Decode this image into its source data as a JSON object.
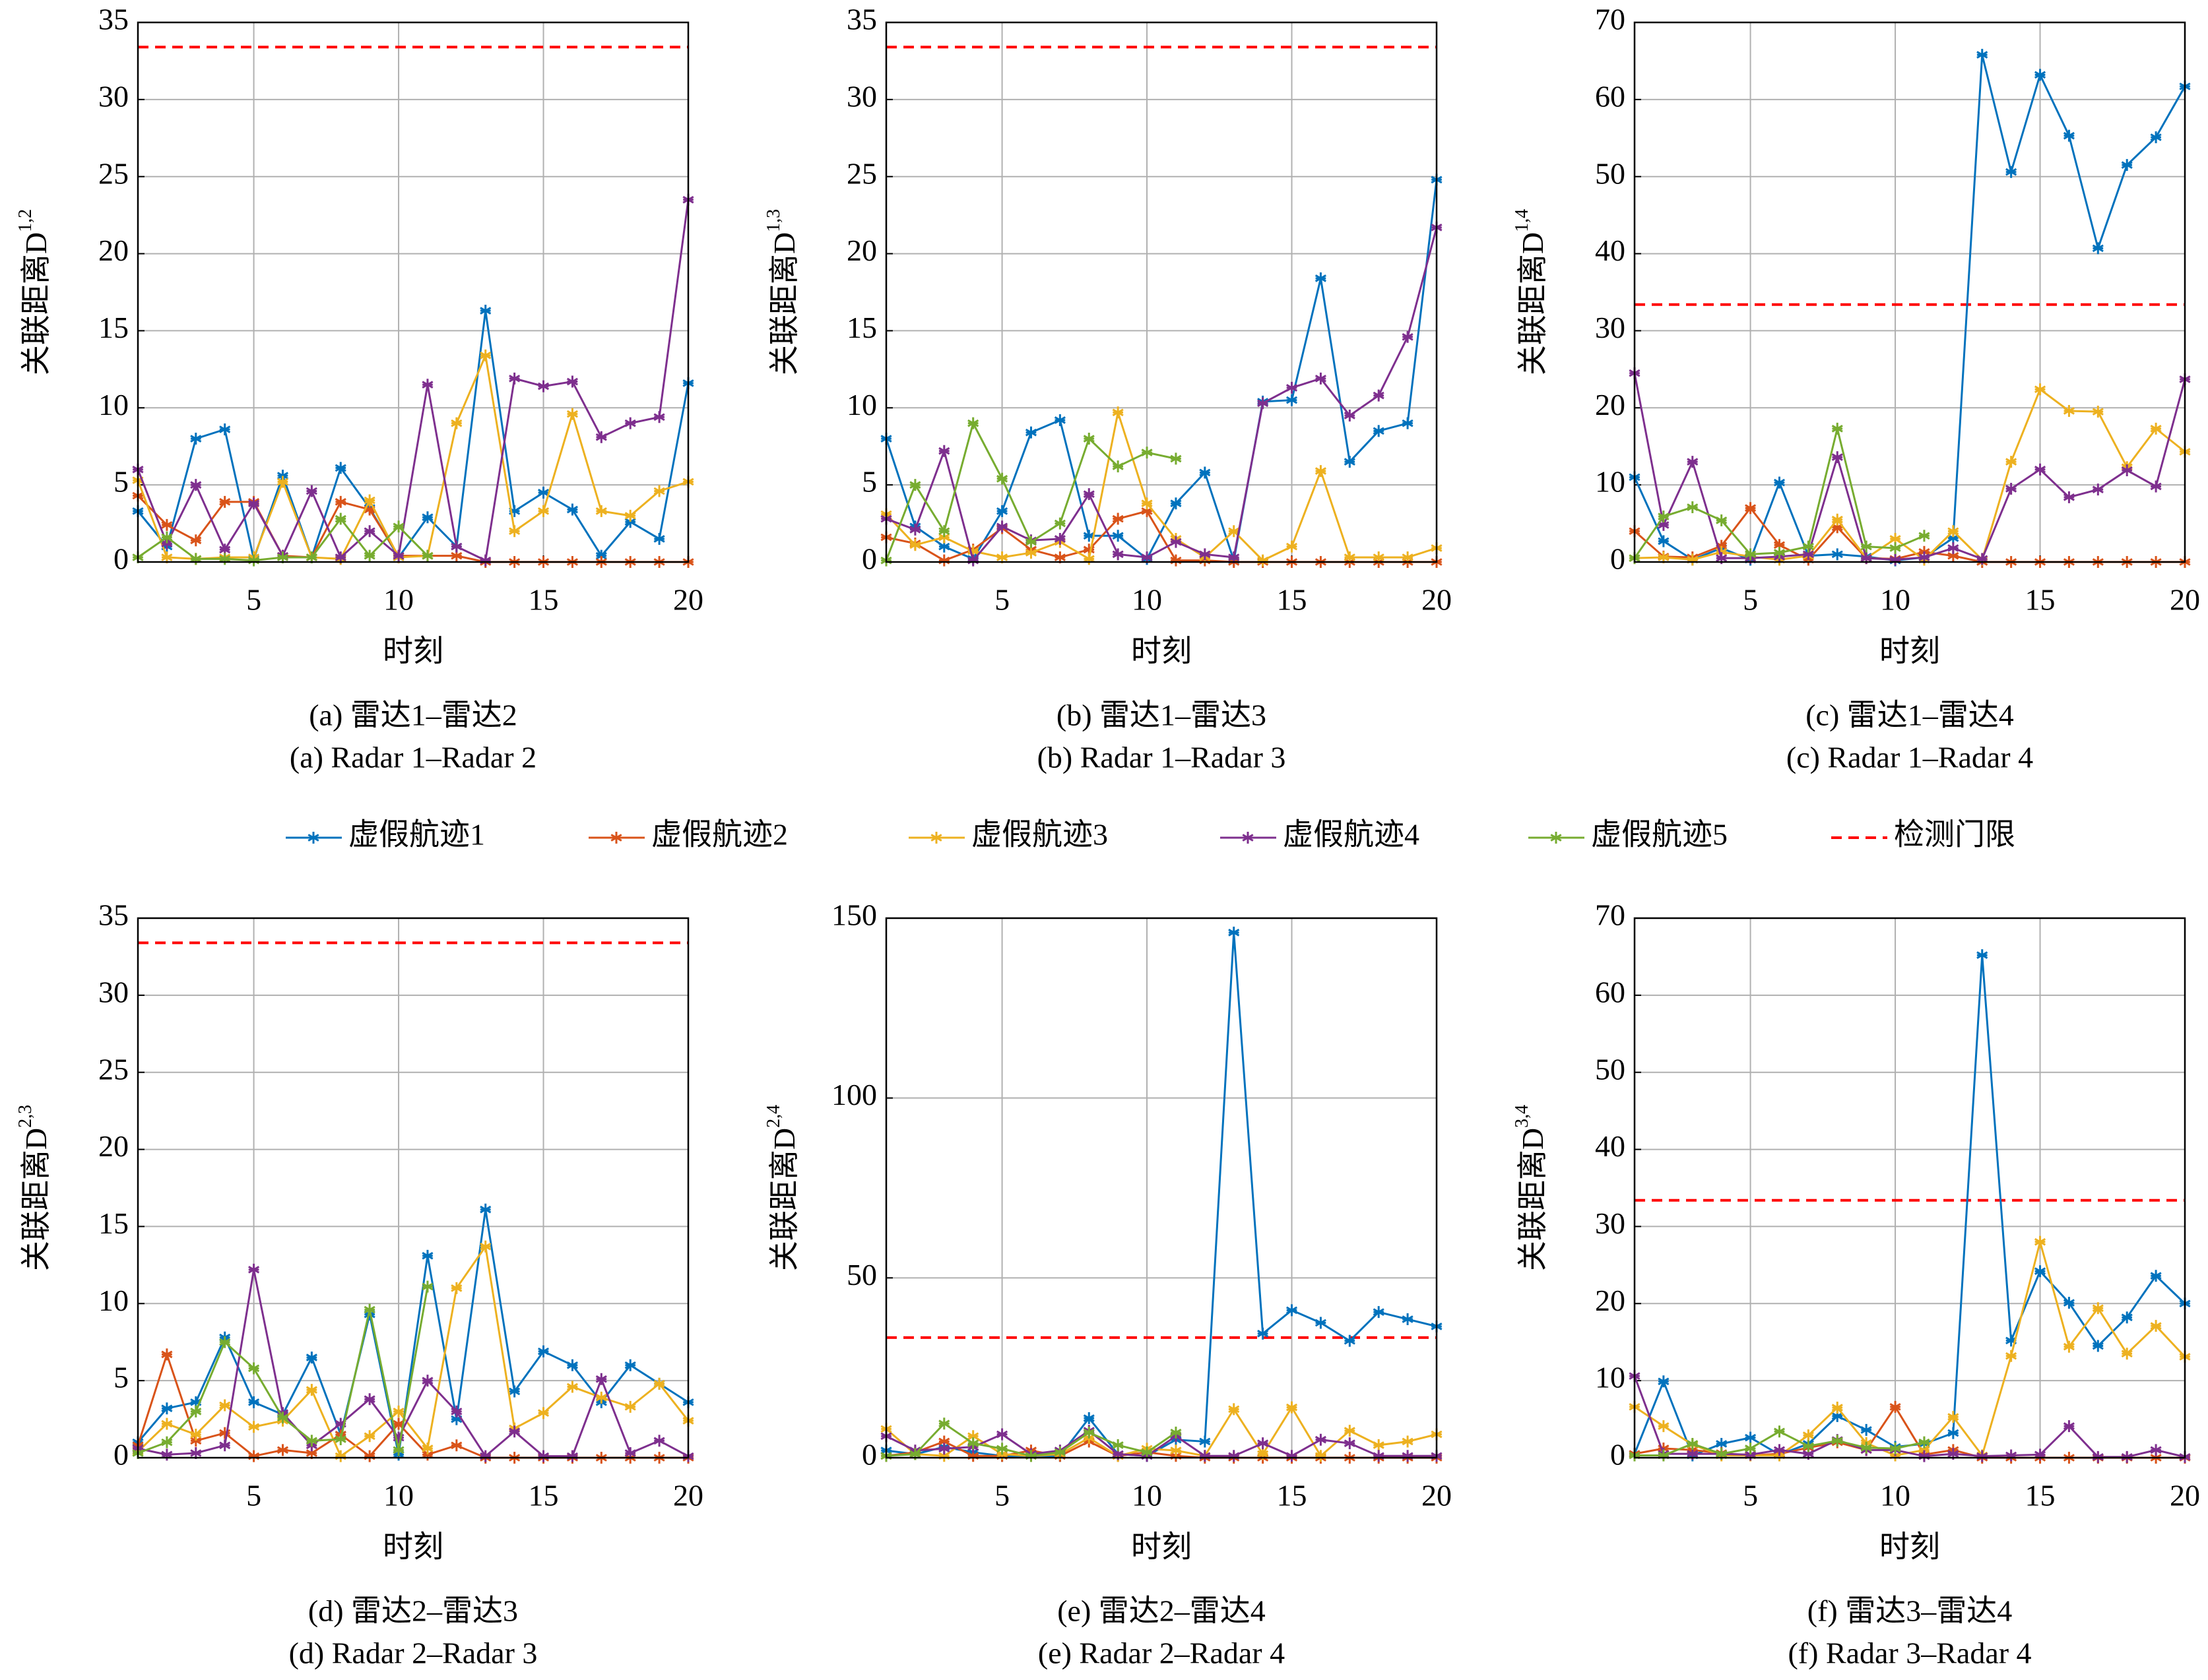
{
  "chart_data": [
    {
      "type": "line",
      "caption_cn": "(a) 雷达1–雷达2",
      "caption_en": "(a) Radar 1–Radar 2",
      "xlabel": "时刻",
      "ylabel": "关联距离D",
      "ylabel_sup": "1,2",
      "x": [
        1,
        2,
        3,
        4,
        5,
        6,
        7,
        8,
        9,
        10,
        11,
        12,
        13,
        14,
        15,
        16,
        17,
        18,
        19,
        20
      ],
      "xlim": [
        1,
        20
      ],
      "xticks": [
        5,
        10,
        15,
        20
      ],
      "ylim": [
        0,
        35
      ],
      "yticks": [
        0,
        5,
        10,
        15,
        20,
        25,
        30,
        35
      ],
      "grid": true,
      "threshold": {
        "name": "检测门限",
        "value": 33.4,
        "color": "#ff0000"
      },
      "series": [
        {
          "name": "虚假航迹1",
          "color": "#0072bd",
          "values": [
            3.3,
            1.0,
            8.0,
            8.6,
            0.2,
            5.6,
            0.3,
            6.1,
            3.5,
            0.3,
            2.9,
            1.0,
            16.3,
            3.3,
            4.5,
            3.4,
            0.4,
            2.6,
            1.5,
            11.6
          ]
        },
        {
          "name": "虚假航迹2",
          "color": "#d95319",
          "values": [
            4.3,
            2.4,
            1.4,
            3.9,
            3.9,
            0.4,
            0.3,
            3.9,
            3.4,
            0.4,
            0.4,
            0.4,
            0,
            0,
            0,
            0,
            0,
            0,
            0,
            0
          ]
        },
        {
          "name": "虚假航迹3",
          "color": "#edb120",
          "values": [
            5.3,
            0.3,
            0.2,
            0.3,
            0.3,
            5.2,
            0.3,
            0.2,
            4.0,
            0.3,
            0.4,
            9.0,
            13.4,
            2.0,
            3.3,
            9.6,
            3.3,
            3.0,
            4.6,
            5.2
          ]
        },
        {
          "name": "虚假航迹4",
          "color": "#7e2f8e",
          "values": [
            6.0,
            1.2,
            5.0,
            0.8,
            3.8,
            0.4,
            4.6,
            0.3,
            2.0,
            0.4,
            11.5,
            1.0,
            0.1,
            11.9,
            11.4,
            11.7,
            8.1,
            9.0,
            9.4,
            23.5
          ]
        },
        {
          "name": "虚假航迹5",
          "color": "#77ac30",
          "values": [
            0.3,
            1.6,
            0.2,
            0.2,
            0.1,
            0.3,
            0.3,
            2.8,
            0.4,
            2.3,
            0.4,
            null,
            null,
            null,
            null,
            null,
            null,
            null,
            null,
            null
          ]
        }
      ]
    },
    {
      "type": "line",
      "caption_cn": "(b) 雷达1–雷达3",
      "caption_en": "(b) Radar 1–Radar 3",
      "xlabel": "时刻",
      "ylabel": "关联距离D",
      "ylabel_sup": "1,3",
      "x": [
        1,
        2,
        3,
        4,
        5,
        6,
        7,
        8,
        9,
        10,
        11,
        12,
        13,
        14,
        15,
        16,
        17,
        18,
        19,
        20
      ],
      "xlim": [
        1,
        20
      ],
      "xticks": [
        5,
        10,
        15,
        20
      ],
      "ylim": [
        0,
        35
      ],
      "yticks": [
        0,
        5,
        10,
        15,
        20,
        25,
        30,
        35
      ],
      "grid": true,
      "threshold": {
        "name": "检测门限",
        "value": 33.4,
        "color": "#ff0000"
      },
      "series": [
        {
          "name": "虚假航迹1",
          "color": "#0072bd",
          "values": [
            8.0,
            2.3,
            1.0,
            0.2,
            3.3,
            8.4,
            9.2,
            1.7,
            1.7,
            0.2,
            3.8,
            5.8,
            0.1,
            10.4,
            10.5,
            18.4,
            6.5,
            8.5,
            9.0,
            24.8
          ]
        },
        {
          "name": "虚假航迹2",
          "color": "#d95319",
          "values": [
            1.6,
            1.2,
            0.1,
            0.8,
            2.2,
            0.8,
            0.3,
            0.8,
            2.8,
            3.3,
            0.1,
            0.1,
            0,
            0,
            0,
            0,
            0,
            0,
            0,
            0
          ]
        },
        {
          "name": "虚假航迹3",
          "color": "#edb120",
          "values": [
            3.1,
            1.1,
            1.6,
            0.7,
            0.3,
            0.6,
            1.3,
            0.2,
            9.7,
            3.8,
            1.5,
            0.3,
            2.0,
            0.1,
            1.0,
            5.9,
            0.3,
            0.3,
            0.3,
            0.9
          ]
        },
        {
          "name": "虚假航迹4",
          "color": "#7e2f8e",
          "values": [
            2.8,
            2.1,
            7.2,
            0.1,
            2.3,
            1.4,
            1.5,
            4.4,
            0.5,
            0.3,
            1.3,
            0.5,
            0.3,
            10.3,
            11.3,
            11.9,
            9.5,
            10.8,
            14.6,
            21.7
          ]
        },
        {
          "name": "虚假航迹5",
          "color": "#77ac30",
          "values": [
            0.1,
            5.0,
            2.0,
            9.0,
            5.4,
            1.3,
            2.5,
            8.0,
            6.2,
            7.1,
            6.7,
            null,
            null,
            null,
            null,
            null,
            null,
            null,
            null,
            null
          ]
        }
      ]
    },
    {
      "type": "line",
      "caption_cn": "(c) 雷达1–雷达4",
      "caption_en": "(c) Radar 1–Radar 4",
      "xlabel": "时刻",
      "ylabel": "关联距离D",
      "ylabel_sup": "1,4",
      "x": [
        1,
        2,
        3,
        4,
        5,
        6,
        7,
        8,
        9,
        10,
        11,
        12,
        13,
        14,
        15,
        16,
        17,
        18,
        19,
        20
      ],
      "xlim": [
        1,
        20
      ],
      "xticks": [
        5,
        10,
        15,
        20
      ],
      "ylim": [
        0,
        70
      ],
      "yticks": [
        0,
        10,
        20,
        30,
        40,
        50,
        60,
        70
      ],
      "grid": true,
      "threshold": {
        "name": "检测门限",
        "value": 33.4,
        "color": "#ff0000"
      },
      "series": [
        {
          "name": "虚假航迹1",
          "color": "#0072bd",
          "values": [
            11.0,
            2.7,
            0.3,
            1.8,
            0.3,
            10.3,
            0.8,
            1.0,
            0.7,
            0.2,
            0.6,
            3.1,
            65.8,
            50.6,
            63.2,
            55.3,
            40.7,
            51.5,
            55.1,
            61.7
          ]
        },
        {
          "name": "虚假航迹2",
          "color": "#d95319",
          "values": [
            4.0,
            0.7,
            0.6,
            2.1,
            7.0,
            2.2,
            0.3,
            4.5,
            0.5,
            0.4,
            1.3,
            0.8,
            0,
            0,
            0,
            0,
            0,
            0,
            0,
            0
          ]
        },
        {
          "name": "虚假航迹3",
          "color": "#edb120",
          "values": [
            0.5,
            0.6,
            0.3,
            1.3,
            0.7,
            0.3,
            0.8,
            5.5,
            0.5,
            3.0,
            0.3,
            4.0,
            0.3,
            13.0,
            22.4,
            19.6,
            19.5,
            12.3,
            17.3,
            14.3
          ]
        },
        {
          "name": "虚假航迹4",
          "color": "#7e2f8e",
          "values": [
            24.5,
            4.8,
            13.0,
            0.5,
            0.5,
            0.7,
            1.0,
            13.6,
            0.5,
            0.3,
            0.6,
            1.8,
            0.4,
            9.5,
            12.0,
            8.4,
            9.4,
            11.9,
            9.8,
            23.7
          ]
        },
        {
          "name": "虚假航迹5",
          "color": "#77ac30",
          "values": [
            0.5,
            5.9,
            7.1,
            5.4,
            1.0,
            1.2,
            2.0,
            17.3,
            2.0,
            1.8,
            3.4,
            null,
            null,
            null,
            null,
            null,
            null,
            null,
            null,
            null
          ]
        }
      ]
    },
    {
      "type": "line",
      "caption_cn": "(d) 雷达2–雷达3",
      "caption_en": "(d) Radar 2–Radar 3",
      "xlabel": "时刻",
      "ylabel": "关联距离D",
      "ylabel_sup": "2,3",
      "x": [
        1,
        2,
        3,
        4,
        5,
        6,
        7,
        8,
        9,
        10,
        11,
        12,
        13,
        14,
        15,
        16,
        17,
        18,
        19,
        20
      ],
      "xlim": [
        1,
        20
      ],
      "xticks": [
        5,
        10,
        15,
        20
      ],
      "ylim": [
        0,
        35
      ],
      "yticks": [
        0,
        5,
        10,
        15,
        20,
        25,
        30,
        35
      ],
      "grid": true,
      "threshold": {
        "name": "检测门限",
        "value": 33.4,
        "color": "#ff0000"
      },
      "series": [
        {
          "name": "虚假航迹1",
          "color": "#0072bd",
          "values": [
            1.0,
            3.2,
            3.6,
            7.8,
            3.6,
            2.8,
            6.5,
            1.5,
            9.3,
            0.2,
            13.1,
            2.5,
            16.1,
            4.3,
            6.9,
            6.0,
            3.6,
            6.0,
            4.8,
            3.6
          ]
        },
        {
          "name": "虚假航迹2",
          "color": "#d95319",
          "values": [
            0.8,
            6.7,
            1.1,
            1.6,
            0.1,
            0.5,
            0.3,
            1.5,
            0.1,
            2.2,
            0.2,
            0.8,
            0,
            0,
            0,
            0,
            0,
            0,
            0,
            0
          ]
        },
        {
          "name": "虚假航迹3",
          "color": "#edb120",
          "values": [
            0.4,
            2.2,
            1.5,
            3.4,
            2.0,
            2.4,
            4.4,
            0.1,
            1.4,
            3.0,
            0.6,
            11.0,
            13.7,
            1.9,
            2.9,
            4.6,
            3.9,
            3.3,
            4.8,
            2.4
          ]
        },
        {
          "name": "虚假航迹4",
          "color": "#7e2f8e",
          "values": [
            0.6,
            0.2,
            0.3,
            0.8,
            12.2,
            2.9,
            0.8,
            2.2,
            3.8,
            1.3,
            5.0,
            3.0,
            0.1,
            1.7,
            0.1,
            0.1,
            5.1,
            0.3,
            1.1,
            0.1
          ]
        },
        {
          "name": "虚假航迹5",
          "color": "#77ac30",
          "values": [
            0.3,
            1.0,
            3.0,
            7.5,
            5.8,
            2.6,
            1.1,
            1.2,
            9.6,
            0.5,
            11.1,
            null,
            null,
            null,
            null,
            null,
            null,
            null,
            null,
            null
          ]
        }
      ]
    },
    {
      "type": "line",
      "caption_cn": "(e) 雷达2–雷达4",
      "caption_en": "(e) Radar 2–Radar 4",
      "xlabel": "时刻",
      "ylabel": "关联距离D",
      "ylabel_sup": "2,4",
      "x": [
        1,
        2,
        3,
        4,
        5,
        6,
        7,
        8,
        9,
        10,
        11,
        12,
        13,
        14,
        15,
        16,
        17,
        18,
        19,
        20
      ],
      "xlim": [
        1,
        20
      ],
      "xticks": [
        5,
        10,
        15,
        20
      ],
      "ylim": [
        0,
        150
      ],
      "yticks": [
        0,
        50,
        100,
        150
      ],
      "grid": true,
      "threshold": {
        "name": "检测门限",
        "value": 33.4,
        "color": "#ff0000"
      },
      "series": [
        {
          "name": "虚假航迹1",
          "color": "#0072bd",
          "values": [
            2.0,
            1.0,
            3.0,
            1.5,
            0.5,
            0.5,
            0.5,
            11.0,
            1.0,
            0.5,
            5.0,
            4.5,
            146,
            34.5,
            41,
            37.5,
            32.5,
            40.5,
            38.5,
            36.5
          ]
        },
        {
          "name": "虚假航迹2",
          "color": "#d95319",
          "values": [
            0.5,
            1.5,
            4.5,
            0.5,
            0.5,
            2.0,
            0.5,
            4.5,
            0.5,
            1.5,
            0.5,
            0,
            0,
            0,
            0,
            0,
            0,
            0,
            0,
            0
          ]
        },
        {
          "name": "虚假航迹3",
          "color": "#edb120",
          "values": [
            8.0,
            1.0,
            0.5,
            6.0,
            1.0,
            0.5,
            1.0,
            5.5,
            0.5,
            2.5,
            2.0,
            0.5,
            13.5,
            1.0,
            14.0,
            0.5,
            7.5,
            3.5,
            4.5,
            6.5
          ]
        },
        {
          "name": "虚假航迹4",
          "color": "#7e2f8e",
          "values": [
            6.0,
            2.0,
            2.5,
            3.0,
            6.5,
            1.0,
            2.0,
            7.5,
            1.0,
            0.5,
            6.0,
            0.5,
            0.5,
            4.0,
            0.5,
            5.0,
            4.0,
            0.5,
            0.5,
            0.5
          ]
        },
        {
          "name": "虚假航迹5",
          "color": "#77ac30",
          "values": [
            0.5,
            1.0,
            9.5,
            4.0,
            2.5,
            0.5,
            1.5,
            7.0,
            3.5,
            1.5,
            7.0,
            null,
            null,
            null,
            null,
            null,
            null,
            null,
            null,
            null
          ]
        }
      ]
    },
    {
      "type": "line",
      "caption_cn": "(f) 雷达3–雷达4",
      "caption_en": "(f) Radar 3–Radar 4",
      "xlabel": "时刻",
      "ylabel": "关联距离D",
      "ylabel_sup": "3,4",
      "x": [
        1,
        2,
        3,
        4,
        5,
        6,
        7,
        8,
        9,
        10,
        11,
        12,
        13,
        14,
        15,
        16,
        17,
        18,
        19,
        20
      ],
      "xlim": [
        1,
        20
      ],
      "xticks": [
        5,
        10,
        15,
        20
      ],
      "ylim": [
        0,
        70
      ],
      "yticks": [
        0,
        10,
        20,
        30,
        40,
        50,
        60,
        70
      ],
      "grid": true,
      "threshold": {
        "name": "检测门限",
        "value": 33.4,
        "color": "#ff0000"
      },
      "series": [
        {
          "name": "虚假航迹1",
          "color": "#0072bd",
          "values": [
            0.5,
            9.9,
            0.3,
            1.8,
            2.6,
            0.4,
            1.8,
            5.4,
            3.6,
            1.4,
            1.8,
            3.2,
            65.2,
            15.2,
            24.2,
            20.1,
            14.5,
            18.2,
            23.6,
            20.0
          ]
        },
        {
          "name": "虚假航迹2",
          "color": "#d95319",
          "values": [
            0.5,
            1.2,
            1.0,
            0.6,
            0.3,
            0.5,
            1.3,
            2.0,
            1.0,
            6.6,
            0.4,
            1.0,
            0,
            0,
            0,
            0,
            0,
            0,
            0,
            0
          ]
        },
        {
          "name": "虚假航迹3",
          "color": "#edb120",
          "values": [
            6.6,
            4.1,
            1.7,
            0.3,
            0.3,
            0.3,
            2.9,
            6.5,
            1.9,
            0.3,
            1.0,
            5.3,
            0.3,
            13.2,
            28.0,
            14.4,
            19.4,
            13.5,
            17.1,
            13.1
          ]
        },
        {
          "name": "虚假航迹4",
          "color": "#7e2f8e",
          "values": [
            10.6,
            0.5,
            0.5,
            0.5,
            0.4,
            1.0,
            0.5,
            2.3,
            1.0,
            1.0,
            0.2,
            0.5,
            0.2,
            0.3,
            0.4,
            4.1,
            0.1,
            0.1,
            1.0,
            0.1
          ]
        },
        {
          "name": "虚假航迹5",
          "color": "#77ac30",
          "values": [
            0.3,
            0.3,
            1.8,
            0.5,
            1.2,
            3.4,
            1.5,
            2.2,
            1.3,
            1.2,
            2.0,
            null,
            null,
            null,
            null,
            null,
            null,
            null,
            null,
            null
          ]
        }
      ]
    }
  ]
}
